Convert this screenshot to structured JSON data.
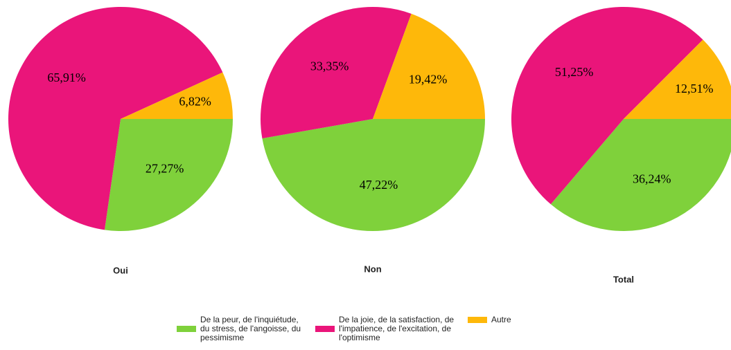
{
  "chart_data": [
    {
      "type": "pie",
      "title": "Oui",
      "categories": [
        "De la peur, de l'inquiétude, du stress, de l'angoisse, du pessimisme",
        "De la joie, de la satisfaction, de l'impatience, de l'excitation, de l'optimisme",
        "Autre"
      ],
      "values": [
        27.27,
        65.91,
        6.82
      ],
      "value_labels": [
        "27,27%",
        "65,91%",
        "6,82%"
      ],
      "colors": [
        "#7fd13b",
        "#ea157a",
        "#feb80a"
      ]
    },
    {
      "type": "pie",
      "title": "Non",
      "categories": [
        "De la peur, de l'inquiétude, du stress, de l'angoisse, du pessimisme",
        "De la joie, de la satisfaction, de l'impatience, de l'excitation, de l'optimisme",
        "Autre"
      ],
      "values": [
        47.22,
        33.35,
        19.42
      ],
      "value_labels": [
        "47,22%",
        "33,35%",
        "19,42%"
      ],
      "colors": [
        "#7fd13b",
        "#ea157a",
        "#feb80a"
      ]
    },
    {
      "type": "pie",
      "title": "Total",
      "categories": [
        "De la peur, de l'inquiétude, du stress, de l'angoisse, du pessimisme",
        "De la joie, de la satisfaction, de l'impatience, de l'excitation, de l'optimisme",
        "Autre"
      ],
      "values": [
        36.24,
        51.25,
        12.51
      ],
      "value_labels": [
        "36,24%",
        "51,25%",
        "12,51%"
      ],
      "colors": [
        "#7fd13b",
        "#ea157a",
        "#feb80a"
      ]
    }
  ]
}
